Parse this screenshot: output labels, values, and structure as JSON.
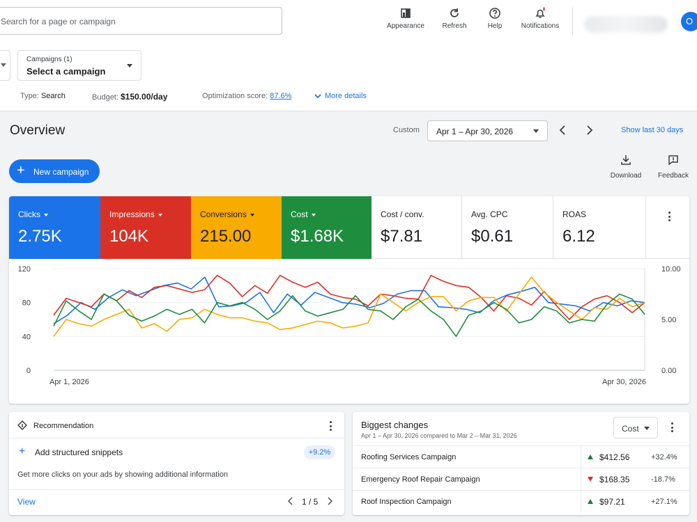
{
  "topbar": {
    "search_placeholder": "Search for a page or campaign",
    "buttons": [
      {
        "label": "Appearance",
        "icon": "appearance-icon"
      },
      {
        "label": "Refresh",
        "icon": "refresh-icon"
      },
      {
        "label": "Help",
        "icon": "help-icon"
      },
      {
        "label": "Notifications",
        "icon": "notifications-icon"
      }
    ],
    "avatar_initial": "O"
  },
  "filters": {
    "campaigns_label": "Campaigns (1)",
    "campaigns_value": "Select a campaign",
    "type_label": "Type:",
    "type_value": "Search",
    "budget_label": "Budget:",
    "budget_value": "$150.00/day",
    "opt_label": "Optimization score:",
    "opt_value": "87.6%",
    "more_details": "More details"
  },
  "overview": {
    "title": "Overview",
    "custom_label": "Custom",
    "date_range": "Apr 1 – Apr 30, 2026",
    "show_last": "Show last 30 days",
    "new_campaign": "New campaign",
    "download": "Download",
    "feedback": "Feedback"
  },
  "metrics": [
    {
      "name": "Clicks",
      "value": "2.75K",
      "color": "#1a73e8",
      "dropdown": true
    },
    {
      "name": "Impressions",
      "value": "104K",
      "color": "#d93025",
      "dropdown": true
    },
    {
      "name": "Conversions",
      "value": "215.00",
      "color": "#f9ab00",
      "dropdown": true
    },
    {
      "name": "Cost",
      "value": "$1.68K",
      "color": "#1e8e3e",
      "dropdown": true
    },
    {
      "name": "Cost / conv.",
      "value": "$7.81",
      "color": "#ffffff",
      "dropdown": false
    },
    {
      "name": "Avg. CPC",
      "value": "$0.61",
      "color": "#ffffff",
      "dropdown": false
    },
    {
      "name": "ROAS",
      "value": "6.12",
      "color": "#ffffff",
      "dropdown": false
    }
  ],
  "chart_data": {
    "type": "line",
    "x_start_label": "Apr 1, 2026",
    "x_end_label": "Apr 30, 2026",
    "y_left_ticks": [
      "120",
      "80",
      "40",
      "0"
    ],
    "y_right_ticks": [
      "10.00",
      "5.00",
      "0.00"
    ],
    "ylim_left": [
      0,
      120
    ],
    "grid": true,
    "series": [
      {
        "color": "#1a73e8",
        "values": [
          55,
          65,
          80,
          72,
          86,
          95,
          88,
          94,
          100,
          103,
          96,
          110,
          75,
          76,
          80,
          92,
          68,
          90,
          77,
          92,
          86,
          80,
          78,
          74,
          79,
          90,
          94,
          94,
          75,
          74,
          72,
          68,
          82,
          89,
          93,
          98,
          80,
          78,
          76,
          70,
          80,
          76,
          82,
          80
        ]
      },
      {
        "color": "#d93025",
        "values": [
          65,
          85,
          80,
          75,
          90,
          82,
          94,
          86,
          98,
          100,
          96,
          92,
          95,
          112,
          103,
          87,
          100,
          91,
          112,
          104,
          98,
          104,
          90,
          86,
          84,
          76,
          90,
          88,
          85,
          84,
          112,
          105,
          100,
          98,
          86,
          70,
          88,
          85,
          77,
          93,
          76,
          60,
          75,
          84,
          88,
          80,
          68,
          80
        ]
      },
      {
        "color": "#f9ab00",
        "values": [
          40,
          60,
          55,
          52,
          60,
          66,
          72,
          50,
          55,
          46,
          60,
          62,
          72,
          66,
          62,
          62,
          58,
          56,
          48,
          50,
          54,
          58,
          56,
          50,
          52,
          56,
          90,
          80,
          70,
          80,
          87,
          87,
          70,
          82,
          86,
          86,
          70,
          90,
          110,
          92,
          80,
          70,
          60,
          74,
          72,
          85,
          75,
          80
        ]
      },
      {
        "color": "#1e8e3e",
        "values": [
          52,
          82,
          70,
          60,
          90,
          82,
          65,
          58,
          64,
          72,
          66,
          72,
          56,
          80,
          76,
          80,
          72,
          60,
          70,
          88,
          70,
          64,
          68,
          72,
          88,
          72,
          70,
          60,
          75,
          84,
          70,
          60,
          40,
          65,
          70,
          80,
          72,
          56,
          60,
          75,
          70,
          56,
          60,
          58,
          78,
          90,
          84,
          66
        ]
      }
    ]
  },
  "recommendation": {
    "header": "Recommendation",
    "title": "Add structured snippets",
    "badge": "+9.2%",
    "description": "Get more clicks on your ads by showing additional information",
    "view": "View",
    "pager": "1 / 5"
  },
  "changes": {
    "title": "Biggest changes",
    "subtitle": "Apr 1 – Apr 30, 2026 compared to Mar 2 – Mar 31, 2026",
    "dropdown": "Cost",
    "rows": [
      {
        "name": "Roofing Services Campaign",
        "direction": "up",
        "amount": "$412.56",
        "change": "+32.4%"
      },
      {
        "name": "Emergency Roof Repair Campaign",
        "direction": "down",
        "amount": "$168.35",
        "change": "-18.7%"
      },
      {
        "name": "Roof Inspection Campaign",
        "direction": "up",
        "amount": "$97.21",
        "change": "+27.1%"
      }
    ]
  }
}
